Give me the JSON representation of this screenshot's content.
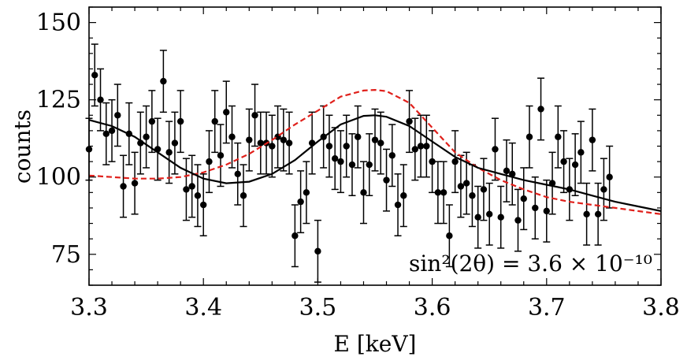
{
  "chart_data": {
    "type": "scatter",
    "xlabel": "E [keV]",
    "ylabel": "counts",
    "xlim": [
      3.3,
      3.8
    ],
    "ylim": [
      65,
      155
    ],
    "x_ticks": [
      3.3,
      3.4,
      3.5,
      3.6,
      3.7,
      3.8
    ],
    "x_tick_labels": [
      "3.3",
      "3.4",
      "3.5",
      "3.6",
      "3.7",
      "3.8"
    ],
    "y_ticks": [
      75,
      100,
      125,
      150
    ],
    "y_tick_labels": [
      "75",
      "100",
      "125",
      "150"
    ],
    "annotation": "sin²(2θ) = 3.6 × 10⁻¹⁰",
    "colors": {
      "data": "#000000",
      "fit": "#000000",
      "model": "#e0201b"
    },
    "series": [
      {
        "name": "data",
        "kind": "errorbar",
        "points": [
          [
            3.3,
            109
          ],
          [
            3.305,
            133
          ],
          [
            3.31,
            125
          ],
          [
            3.315,
            114
          ],
          [
            3.32,
            115
          ],
          [
            3.325,
            120
          ],
          [
            3.33,
            97
          ],
          [
            3.335,
            114
          ],
          [
            3.34,
            98
          ],
          [
            3.345,
            111
          ],
          [
            3.35,
            113
          ],
          [
            3.355,
            118
          ],
          [
            3.36,
            109
          ],
          [
            3.365,
            131
          ],
          [
            3.37,
            108
          ],
          [
            3.375,
            111
          ],
          [
            3.38,
            118
          ],
          [
            3.385,
            96
          ],
          [
            3.39,
            97
          ],
          [
            3.395,
            94
          ],
          [
            3.4,
            91
          ],
          [
            3.405,
            105
          ],
          [
            3.41,
            118
          ],
          [
            3.415,
            107
          ],
          [
            3.42,
            121
          ],
          [
            3.425,
            113
          ],
          [
            3.43,
            101
          ],
          [
            3.435,
            94
          ],
          [
            3.44,
            112
          ],
          [
            3.445,
            120
          ],
          [
            3.45,
            111
          ],
          [
            3.455,
            111
          ],
          [
            3.46,
            110
          ],
          [
            3.465,
            113
          ],
          [
            3.47,
            112
          ],
          [
            3.475,
            111
          ],
          [
            3.48,
            81
          ],
          [
            3.485,
            92
          ],
          [
            3.49,
            95
          ],
          [
            3.495,
            111
          ],
          [
            3.5,
            76
          ],
          [
            3.505,
            113
          ],
          [
            3.51,
            110
          ],
          [
            3.515,
            106
          ],
          [
            3.52,
            105
          ],
          [
            3.525,
            110
          ],
          [
            3.53,
            104
          ],
          [
            3.535,
            113
          ],
          [
            3.54,
            95
          ],
          [
            3.545,
            104
          ],
          [
            3.55,
            112
          ],
          [
            3.555,
            111
          ],
          [
            3.56,
            99
          ],
          [
            3.565,
            107
          ],
          [
            3.57,
            91
          ],
          [
            3.575,
            94
          ],
          [
            3.58,
            118
          ],
          [
            3.585,
            109
          ],
          [
            3.59,
            110
          ],
          [
            3.595,
            110
          ],
          [
            3.6,
            105
          ],
          [
            3.605,
            95
          ],
          [
            3.61,
            95
          ],
          [
            3.615,
            81
          ],
          [
            3.62,
            105
          ],
          [
            3.625,
            97
          ],
          [
            3.63,
            98
          ],
          [
            3.635,
            94
          ],
          [
            3.64,
            87
          ],
          [
            3.645,
            96
          ],
          [
            3.65,
            88
          ],
          [
            3.655,
            109
          ],
          [
            3.66,
            87
          ],
          [
            3.665,
            102
          ],
          [
            3.67,
            101
          ],
          [
            3.675,
            86
          ],
          [
            3.68,
            93
          ],
          [
            3.685,
            113
          ],
          [
            3.69,
            90
          ],
          [
            3.695,
            122
          ],
          [
            3.7,
            89
          ],
          [
            3.705,
            98
          ],
          [
            3.71,
            113
          ],
          [
            3.715,
            105
          ],
          [
            3.72,
            96
          ],
          [
            3.725,
            104
          ],
          [
            3.73,
            108
          ],
          [
            3.735,
            88
          ],
          [
            3.74,
            112
          ],
          [
            3.745,
            88
          ],
          [
            3.75,
            96
          ],
          [
            3.755,
            100
          ]
        ],
        "error": 10
      },
      {
        "name": "fit",
        "kind": "line",
        "style": "solid",
        "x": [
          3.3,
          3.32,
          3.34,
          3.36,
          3.38,
          3.4,
          3.42,
          3.44,
          3.46,
          3.48,
          3.5,
          3.52,
          3.54,
          3.55,
          3.56,
          3.58,
          3.6,
          3.62,
          3.64,
          3.66,
          3.68,
          3.7,
          3.72,
          3.74,
          3.76,
          3.78,
          3.8
        ],
        "y": [
          118.5,
          116.5,
          113,
          108,
          103,
          99.5,
          98,
          98.5,
          101,
          105.5,
          111.5,
          117,
          119.8,
          120,
          119.5,
          116.5,
          111.5,
          106.5,
          103,
          101,
          99,
          97.5,
          96,
          94,
          92,
          90.5,
          89
        ]
      },
      {
        "name": "model",
        "kind": "line",
        "style": "dashed",
        "x": [
          3.3,
          3.32,
          3.34,
          3.36,
          3.38,
          3.4,
          3.42,
          3.44,
          3.46,
          3.48,
          3.5,
          3.52,
          3.54,
          3.55,
          3.56,
          3.58,
          3.6,
          3.62,
          3.64,
          3.66,
          3.68,
          3.7,
          3.72,
          3.74,
          3.76,
          3.78,
          3.8
        ],
        "y": [
          100.5,
          100,
          99.5,
          99.5,
          100,
          101.5,
          104,
          107.5,
          112,
          117,
          121.5,
          126,
          128,
          128.2,
          127.8,
          124,
          116,
          108,
          103,
          99,
          96,
          93.5,
          92,
          91,
          90,
          89,
          88
        ]
      }
    ]
  }
}
